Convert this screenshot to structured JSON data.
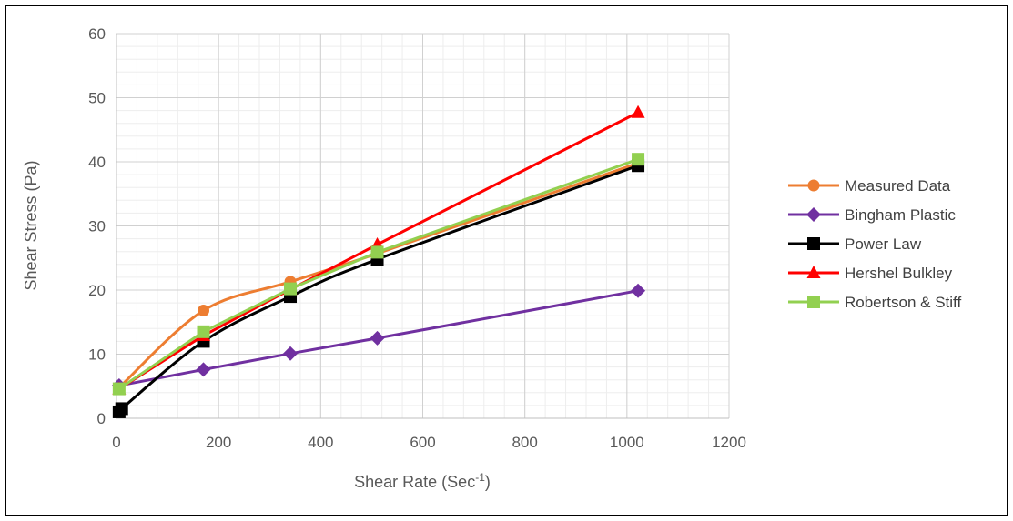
{
  "chart_data": {
    "type": "scatter",
    "title": "",
    "xlabel": "Shear Rate (Sec",
    "xlabel_sup": "-1",
    "xlabel_close": ")",
    "ylabel": "Shear Stress (Pa)",
    "xlim": [
      0,
      1200
    ],
    "ylim": [
      0,
      60
    ],
    "x_ticks": [
      0,
      200,
      400,
      600,
      800,
      1000,
      1200
    ],
    "y_ticks": [
      0,
      10,
      20,
      30,
      40,
      50,
      60
    ],
    "x_ticks_labels": [
      "0",
      "200",
      "400",
      "600",
      "800",
      "1000",
      "1200"
    ],
    "y_ticks_labels": [
      "0",
      "10",
      "20",
      "30",
      "40",
      "50",
      "60"
    ],
    "grid": true,
    "legend_position": "right",
    "series": [
      {
        "name": "Measured Data",
        "color": "#ED7D31",
        "marker": "circle",
        "smooth": true,
        "x": [
          5.1,
          170.3,
          340.6,
          510.9,
          1021.8
        ],
        "y": [
          4.8,
          16.8,
          21.3,
          25.7,
          39.8
        ]
      },
      {
        "name": "Bingham Plastic",
        "color": "#7030A0",
        "marker": "diamond",
        "smooth": false,
        "x": [
          5.1,
          170.3,
          340.6,
          510.9,
          1021.8
        ],
        "y": [
          5.1,
          7.6,
          10.1,
          12.5,
          19.9
        ]
      },
      {
        "name": "Power Law",
        "color": "#000000",
        "marker": "square",
        "smooth": true,
        "x": [
          5.1,
          10.2,
          170.3,
          340.6,
          510.9,
          1021.8
        ],
        "y": [
          1.0,
          1.5,
          12.0,
          19.0,
          24.8,
          39.4
        ]
      },
      {
        "name": "Hershel Bulkley",
        "color": "#FF0000",
        "marker": "triangle",
        "smooth": false,
        "x": [
          5.1,
          170.3,
          340.6,
          510.9,
          1021.8
        ],
        "y": [
          4.6,
          12.9,
          20.1,
          27.1,
          47.7
        ]
      },
      {
        "name": "Robertson & Stiff",
        "color": "#92D050",
        "marker": "square",
        "smooth": false,
        "x": [
          5.1,
          170.3,
          340.6,
          510.9,
          1021.8
        ],
        "y": [
          4.6,
          13.5,
          20.2,
          25.9,
          40.4
        ]
      }
    ]
  }
}
